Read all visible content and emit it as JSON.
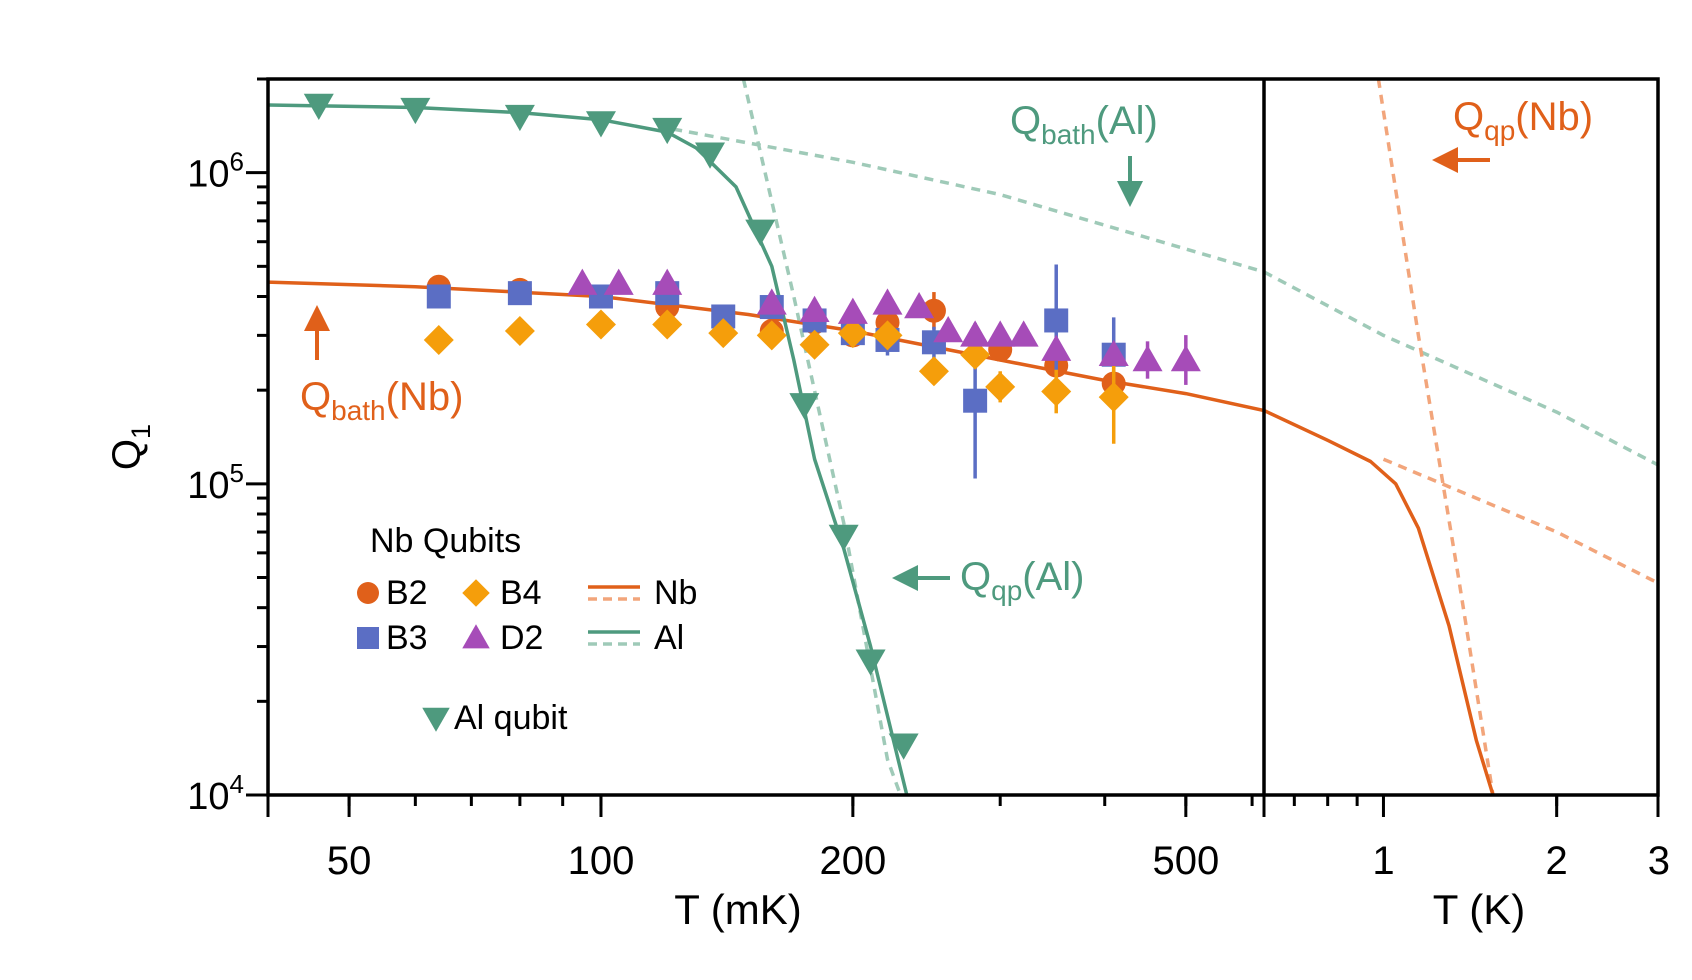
{
  "chart_data": {
    "type": "scatter",
    "y_label_main": "Q",
    "y_label_sub": "1",
    "y_scale": "log",
    "y_range": [
      10000,
      2000000
    ],
    "y_ticks": [
      {
        "value": 10000,
        "base": "10",
        "exp": "4"
      },
      {
        "value": 100000,
        "base": "10",
        "exp": "5"
      },
      {
        "value": 1000000,
        "base": "10",
        "exp": "6"
      }
    ],
    "panels": [
      {
        "id": "mk",
        "x_label": "T (mK)",
        "x_scale": "log",
        "x_range": [
          40,
          620
        ],
        "x_unit": "mK",
        "x_ticks": [
          50,
          100,
          200,
          500
        ],
        "x_tick_labels": [
          "50",
          "100",
          "200",
          "500"
        ]
      },
      {
        "id": "k",
        "x_label": "T (K)",
        "x_scale": "log",
        "x_range": [
          0.62,
          3
        ],
        "x_unit": "K",
        "x_ticks": [
          1,
          2,
          3
        ],
        "x_tick_labels": [
          "1",
          "2",
          "3"
        ]
      }
    ],
    "series": [
      {
        "name": "B2",
        "marker": "circle",
        "color": "#E0601A",
        "unit": "mK",
        "points": [
          [
            64,
            430000
          ],
          [
            80,
            420000
          ],
          [
            100,
            400000
          ],
          [
            120,
            370000
          ],
          [
            160,
            310000
          ],
          [
            180,
            330000
          ],
          [
            200,
            300000
          ],
          [
            220,
            330000
          ],
          [
            250,
            360000
          ],
          [
            300,
            270000
          ],
          [
            350,
            240000
          ],
          [
            410,
            210000
          ]
        ],
        "err": [
          0,
          0,
          0,
          0,
          0,
          0,
          0,
          0,
          0.06,
          0,
          0,
          0.05
        ]
      },
      {
        "name": "B3",
        "marker": "square",
        "color": "#5B6EC4",
        "unit": "mK",
        "points": [
          [
            64,
            400000
          ],
          [
            80,
            410000
          ],
          [
            100,
            400000
          ],
          [
            120,
            410000
          ],
          [
            140,
            345000
          ],
          [
            160,
            370000
          ],
          [
            180,
            335000
          ],
          [
            200,
            305000
          ],
          [
            220,
            290000
          ],
          [
            250,
            285000
          ],
          [
            280,
            185000
          ],
          [
            350,
            335000
          ],
          [
            410,
            260000
          ]
        ],
        "err": [
          0,
          0,
          0,
          0,
          0,
          0,
          0,
          0,
          0.05,
          0.05,
          0.25,
          0.18,
          0.12
        ]
      },
      {
        "name": "B4",
        "marker": "diamond",
        "color": "#F59E0B",
        "unit": "mK",
        "points": [
          [
            64,
            290000
          ],
          [
            80,
            310000
          ],
          [
            100,
            325000
          ],
          [
            120,
            325000
          ],
          [
            140,
            305000
          ],
          [
            160,
            300000
          ],
          [
            180,
            280000
          ],
          [
            200,
            305000
          ],
          [
            220,
            300000
          ],
          [
            250,
            230000
          ],
          [
            280,
            260000
          ],
          [
            300,
            205000
          ],
          [
            350,
            198000
          ],
          [
            410,
            190000
          ]
        ],
        "err": [
          0,
          0,
          0,
          0,
          0,
          0,
          0,
          0,
          0,
          0,
          0,
          0.05,
          0.07,
          0.15
        ]
      },
      {
        "name": "D2",
        "marker": "triangle-up",
        "color": "#A64CB8",
        "unit": "mK",
        "points": [
          [
            95,
            440000
          ],
          [
            105,
            440000
          ],
          [
            120,
            440000
          ],
          [
            160,
            380000
          ],
          [
            180,
            360000
          ],
          [
            200,
            355000
          ],
          [
            220,
            380000
          ],
          [
            240,
            370000
          ],
          [
            260,
            310000
          ],
          [
            280,
            300000
          ],
          [
            300,
            300000
          ],
          [
            320,
            300000
          ],
          [
            350,
            270000
          ],
          [
            410,
            260000
          ],
          [
            450,
            250000
          ],
          [
            500,
            250000
          ]
        ],
        "err": [
          0,
          0,
          0,
          0,
          0,
          0,
          0,
          0,
          0,
          0,
          0,
          0,
          0,
          0,
          0.06,
          0.08
        ]
      },
      {
        "name": "Al qubit",
        "marker": "triangle-down",
        "color": "#4E9A7E",
        "unit": "mK",
        "points": [
          [
            46,
            1650000
          ],
          [
            60,
            1600000
          ],
          [
            80,
            1520000
          ],
          [
            100,
            1450000
          ],
          [
            120,
            1380000
          ],
          [
            135,
            1150000
          ],
          [
            155,
            650000
          ],
          [
            175,
            180000
          ],
          [
            195,
            68000
          ],
          [
            210,
            27000
          ],
          [
            230,
            14500
          ]
        ],
        "err": [
          0,
          0,
          0,
          0,
          0,
          0,
          0,
          0,
          0,
          0,
          0
        ]
      }
    ],
    "curves": [
      {
        "name": "Nb",
        "style": "solid",
        "color": "#E0601A",
        "unit": "mK",
        "points": [
          [
            40,
            445000
          ],
          [
            60,
            430000
          ],
          [
            100,
            400000
          ],
          [
            150,
            350000
          ],
          [
            200,
            310000
          ],
          [
            300,
            250000
          ],
          [
            400,
            215000
          ],
          [
            500,
            195000
          ],
          [
            620,
            172000
          ]
        ]
      },
      {
        "name": "Nb",
        "style": "solid",
        "color": "#E0601A",
        "unit": "K",
        "points": [
          [
            0.62,
            172000
          ],
          [
            0.8,
            138000
          ],
          [
            0.95,
            118000
          ],
          [
            1.05,
            100000
          ],
          [
            1.15,
            72000
          ],
          [
            1.3,
            35000
          ],
          [
            1.45,
            15000
          ],
          [
            1.55,
            10000
          ]
        ]
      },
      {
        "name": "Al",
        "style": "solid",
        "color": "#4E9A7E",
        "unit": "mK",
        "points": [
          [
            40,
            1650000
          ],
          [
            60,
            1620000
          ],
          [
            80,
            1560000
          ],
          [
            100,
            1480000
          ],
          [
            120,
            1350000
          ],
          [
            130,
            1200000
          ],
          [
            145,
            900000
          ],
          [
            160,
            500000
          ],
          [
            170,
            250000
          ],
          [
            180,
            120000
          ],
          [
            195,
            62000
          ],
          [
            210,
            30000
          ],
          [
            225,
            14000
          ],
          [
            232,
            10000
          ]
        ]
      }
    ],
    "asymptotes": [
      {
        "name": "Qbath(Al)",
        "style": "dashed",
        "color": "#9FCAB8",
        "unit": "mK",
        "points": [
          [
            122,
            1380000
          ],
          [
            200,
            1080000
          ],
          [
            300,
            850000
          ],
          [
            620,
            480000
          ]
        ]
      },
      {
        "name": "Qbath(Al)",
        "style": "dashed",
        "color": "#9FCAB8",
        "unit": "K",
        "points": [
          [
            0.62,
            480000
          ],
          [
            1.0,
            300000
          ],
          [
            2.0,
            170000
          ],
          [
            3.0,
            115000
          ]
        ]
      },
      {
        "name": "Qqp(Al)",
        "style": "dashed",
        "color": "#9FCAB8",
        "unit": "mK",
        "points": [
          [
            148,
            2000000
          ],
          [
            170,
            400000
          ],
          [
            195,
            75000
          ],
          [
            220,
            13000
          ],
          [
            228,
            10000
          ]
        ]
      },
      {
        "name": "Qbath(Nb)",
        "style": "dashed",
        "color": "#F2A57B",
        "unit": "K",
        "points": [
          [
            1.0,
            120000
          ],
          [
            2.0,
            70000
          ],
          [
            3.0,
            48000
          ]
        ]
      },
      {
        "name": "Qqp(Nb)",
        "style": "dashed",
        "color": "#F2A57B",
        "unit": "K",
        "points": [
          [
            0.98,
            2000000
          ],
          [
            1.15,
            300000
          ],
          [
            1.35,
            50000
          ],
          [
            1.55,
            10000
          ]
        ]
      }
    ],
    "annotations": [
      {
        "id": "qbath-al",
        "main": "Q",
        "sub": "bath",
        "tail": "(Al)",
        "color": "#4E9A7E",
        "arrow": "down"
      },
      {
        "id": "qbath-nb",
        "main": "Q",
        "sub": "bath",
        "tail": "(Nb)",
        "color": "#E0601A",
        "arrow": "up"
      },
      {
        "id": "qqp-al",
        "main": "Q",
        "sub": "qp",
        "tail": "(Al)",
        "color": "#4E9A7E",
        "arrow": "left"
      },
      {
        "id": "qqp-nb",
        "main": "Q",
        "sub": "qp",
        "tail": "(Nb)",
        "color": "#E0601A",
        "arrow": "left"
      }
    ],
    "legend": {
      "title": "Nb Qubits",
      "position": "bottom-left",
      "entries": [
        {
          "label": "B2",
          "marker": "circle",
          "color": "#E0601A"
        },
        {
          "label": "B4",
          "marker": "diamond",
          "color": "#F59E0B"
        },
        {
          "label": "Nb",
          "marker": "lines",
          "color": "#E0601A",
          "dash_color": "#F2A57B"
        },
        {
          "label": "B3",
          "marker": "square",
          "color": "#5B6EC4"
        },
        {
          "label": "D2",
          "marker": "triangle-up",
          "color": "#A64CB8"
        },
        {
          "label": "Al",
          "marker": "lines",
          "color": "#4E9A7E",
          "dash_color": "#9FCAB8"
        },
        {
          "label": "Al qubit",
          "marker": "triangle-down",
          "color": "#4E9A7E"
        }
      ]
    }
  }
}
